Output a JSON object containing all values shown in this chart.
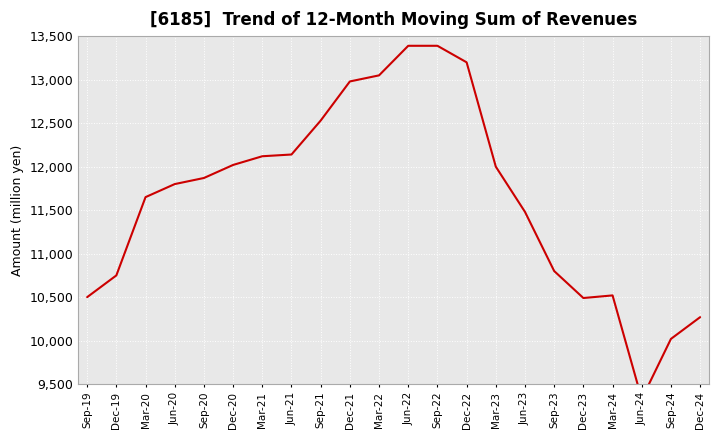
{
  "title": "[6185]  Trend of 12-Month Moving Sum of Revenues",
  "ylabel": "Amount (million yen)",
  "line_color": "#cc0000",
  "background_color": "#ffffff",
  "plot_bg_color": "#e8e8e8",
  "grid_color": "#ffffff",
  "ylim": [
    9500,
    13500
  ],
  "yticks": [
    9500,
    10000,
    10500,
    11000,
    11500,
    12000,
    12500,
    13000,
    13500
  ],
  "x_labels": [
    "Sep-19",
    "Dec-19",
    "Mar-20",
    "Jun-20",
    "Sep-20",
    "Dec-20",
    "Mar-21",
    "Jun-21",
    "Sep-21",
    "Dec-21",
    "Mar-22",
    "Jun-22",
    "Sep-22",
    "Dec-22",
    "Mar-23",
    "Jun-23",
    "Sep-23",
    "Dec-23",
    "Mar-24",
    "Jun-24",
    "Sep-24",
    "Dec-24"
  ],
  "values": [
    10500,
    10750,
    11650,
    11800,
    11870,
    12020,
    12120,
    12140,
    12530,
    12980,
    13050,
    13390,
    13390,
    13200,
    12000,
    11480,
    10800,
    10490,
    10520,
    9330,
    10020,
    10270
  ]
}
